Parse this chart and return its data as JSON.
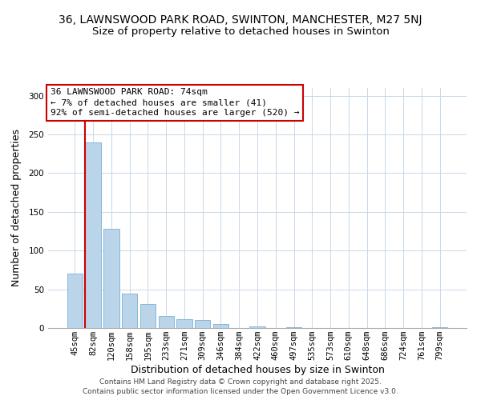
{
  "title_line1": "36, LAWNSWOOD PARK ROAD, SWINTON, MANCHESTER, M27 5NJ",
  "title_line2": "Size of property relative to detached houses in Swinton",
  "xlabel": "Distribution of detached houses by size in Swinton",
  "ylabel": "Number of detached properties",
  "bar_labels": [
    "45sqm",
    "82sqm",
    "120sqm",
    "158sqm",
    "195sqm",
    "233sqm",
    "271sqm",
    "309sqm",
    "346sqm",
    "384sqm",
    "422sqm",
    "460sqm",
    "497sqm",
    "535sqm",
    "573sqm",
    "610sqm",
    "648sqm",
    "686sqm",
    "724sqm",
    "761sqm",
    "799sqm"
  ],
  "bar_values": [
    70,
    240,
    128,
    44,
    31,
    16,
    11,
    10,
    5,
    0,
    2,
    0,
    1,
    0,
    0,
    0,
    0,
    0,
    0,
    0,
    1
  ],
  "bar_color": "#bad4ea",
  "bar_edge_color": "#7bafd4",
  "annotation_text_line1": "36 LAWNSWOOD PARK ROAD: 74sqm",
  "annotation_text_line2": "← 7% of detached houses are smaller (41)",
  "annotation_text_line3": "92% of semi-detached houses are larger (520) →",
  "property_line_color": "#cc0000",
  "ylim": [
    0,
    310
  ],
  "yticks": [
    0,
    50,
    100,
    150,
    200,
    250,
    300
  ],
  "footer_line1": "Contains HM Land Registry data © Crown copyright and database right 2025.",
  "footer_line2": "Contains public sector information licensed under the Open Government Licence v3.0.",
  "bg_color": "#ffffff",
  "grid_color": "#c8d8e8",
  "title_fontsize": 10,
  "subtitle_fontsize": 9.5,
  "axis_label_fontsize": 9,
  "tick_fontsize": 7.5,
  "annotation_fontsize": 8,
  "footer_fontsize": 6.5
}
